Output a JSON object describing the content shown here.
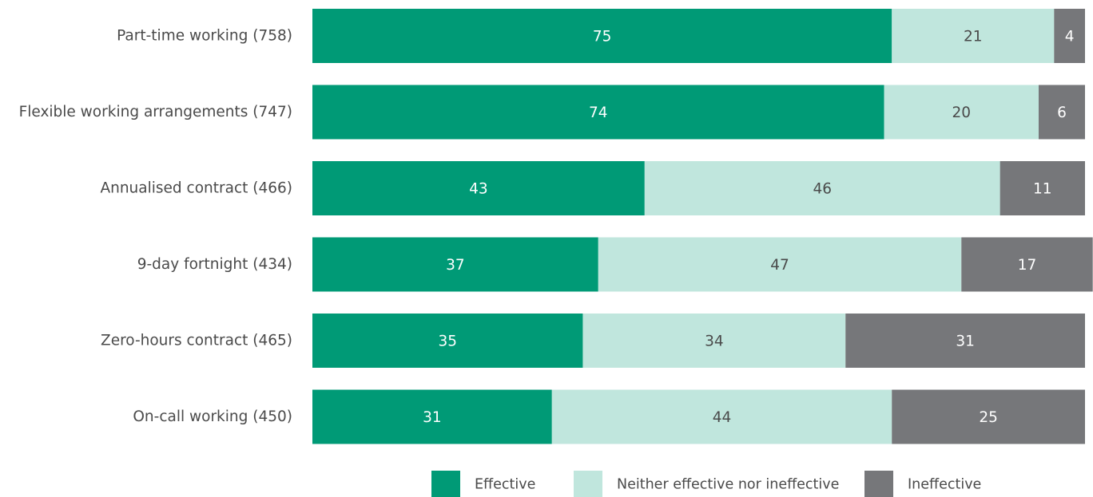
{
  "chart_data": {
    "type": "bar",
    "orientation": "horizontal",
    "stacked": true,
    "categories": [
      "Part-time working (758)",
      "Flexible working arrangements (747)",
      "Annualised contract (466)",
      "9-day fortnight (434)",
      "Zero-hours contract (465)",
      "On-call working (450)"
    ],
    "series": [
      {
        "name": "Effective",
        "values": [
          75,
          74,
          43,
          37,
          35,
          31
        ],
        "color": "#009a76",
        "label_color": "#ffffff"
      },
      {
        "name": "Neither effective nor ineffective",
        "values": [
          21,
          20,
          46,
          47,
          34,
          44
        ],
        "color": "#c0e6dd",
        "label_color": "#4a4a4a"
      },
      {
        "name": "Ineffective",
        "values": [
          4,
          6,
          11,
          17,
          31,
          25
        ],
        "color": "#76777a",
        "label_color": "#ffffff"
      }
    ],
    "xlim": [
      0,
      100
    ],
    "grid": false,
    "legend_position": "bottom"
  }
}
